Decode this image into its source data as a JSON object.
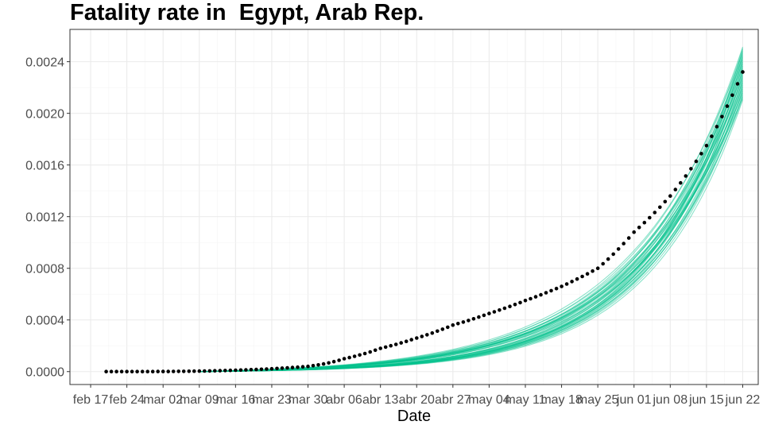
{
  "chart_data": {
    "type": "scatter",
    "title": "Fatality rate in  Egypt, Arab Rep.",
    "xlabel": "Date",
    "ylabel": "",
    "x_start": "2020-02-20",
    "x_end": "2020-06-22",
    "xlim": [
      "2020-02-13",
      "2020-06-25"
    ],
    "ylim": [
      -0.0001,
      0.00265
    ],
    "x_ticks": [
      {
        "date": "2020-02-17",
        "label": "feb 17"
      },
      {
        "date": "2020-02-24",
        "label": "feb 24"
      },
      {
        "date": "2020-03-02",
        "label": "mar 02"
      },
      {
        "date": "2020-03-09",
        "label": "mar 09"
      },
      {
        "date": "2020-03-16",
        "label": "mar 16"
      },
      {
        "date": "2020-03-23",
        "label": "mar 23"
      },
      {
        "date": "2020-03-30",
        "label": "mar 30"
      },
      {
        "date": "2020-04-06",
        "label": "abr 06"
      },
      {
        "date": "2020-04-13",
        "label": "abr 13"
      },
      {
        "date": "2020-04-20",
        "label": "abr 20"
      },
      {
        "date": "2020-04-27",
        "label": "abr 27"
      },
      {
        "date": "2020-05-04",
        "label": "may 04"
      },
      {
        "date": "2020-05-11",
        "label": "may 11"
      },
      {
        "date": "2020-05-18",
        "label": "may 18"
      },
      {
        "date": "2020-05-25",
        "label": "may 25"
      },
      {
        "date": "2020-06-01",
        "label": "jun 01"
      },
      {
        "date": "2020-06-08",
        "label": "jun 08"
      },
      {
        "date": "2020-06-15",
        "label": "jun 15"
      },
      {
        "date": "2020-06-22",
        "label": "jun 22"
      }
    ],
    "y_ticks": [
      {
        "value": 0.0,
        "label": "0.0000"
      },
      {
        "value": 0.0004,
        "label": "0.0004"
      },
      {
        "value": 0.0008,
        "label": "0.0008"
      },
      {
        "value": 0.0012,
        "label": "0.0012"
      },
      {
        "value": 0.0016,
        "label": "0.0016"
      },
      {
        "value": 0.002,
        "label": "0.0020"
      },
      {
        "value": 0.0024,
        "label": "0.0024"
      }
    ],
    "observed_series": {
      "color": "#000000",
      "points": [
        [
          "2020-03-30",
          4e-05
        ],
        [
          "2020-04-06",
          0.0001
        ],
        [
          "2020-04-13",
          0.00018
        ],
        [
          "2020-04-20",
          0.00026
        ],
        [
          "2020-04-27",
          0.00036
        ],
        [
          "2020-05-04",
          0.00045
        ],
        [
          "2020-05-11",
          0.00055
        ],
        [
          "2020-05-18",
          0.00066
        ],
        [
          "2020-05-25",
          0.0008
        ],
        [
          "2020-06-01",
          0.00108
        ],
        [
          "2020-06-08",
          0.00136
        ],
        [
          "2020-06-15",
          0.00175
        ],
        [
          "2020-06-22",
          0.00232
        ]
      ]
    },
    "simulated_series": {
      "color": "#00c08b",
      "count": 40,
      "final_min": 0.0021,
      "final_max": 0.00252
    },
    "grid": true,
    "legend": "none"
  }
}
